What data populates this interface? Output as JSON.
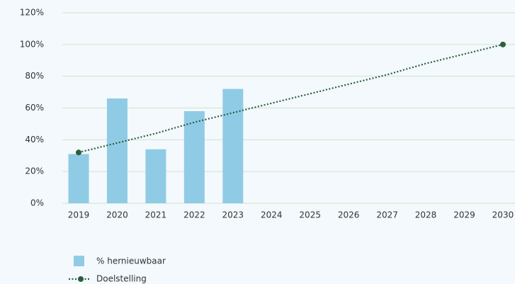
{
  "chart_data": {
    "type": "bar",
    "categories": [
      "2019",
      "2020",
      "2021",
      "2022",
      "2023",
      "2024",
      "2025",
      "2026",
      "2027",
      "2028",
      "2029",
      "2030"
    ],
    "series": [
      {
        "name": "% hernieuwbaar",
        "type": "bar",
        "color": "#90cbe6",
        "values": [
          31,
          66,
          34,
          58,
          72,
          null,
          null,
          null,
          null,
          null,
          null,
          null
        ]
      },
      {
        "name": "Doelstelling",
        "type": "line",
        "color": "#2b5e3c",
        "values": [
          32,
          38,
          44,
          51,
          57,
          63,
          69,
          75,
          81,
          88,
          94,
          100
        ]
      }
    ],
    "ylim": [
      0,
      120
    ],
    "yticks": [
      {
        "value": 0,
        "label": "0%"
      },
      {
        "value": 20,
        "label": "20%"
      },
      {
        "value": 40,
        "label": "40%"
      },
      {
        "value": 60,
        "label": "60%"
      },
      {
        "value": 80,
        "label": "80%"
      },
      {
        "value": 100,
        "label": "100%"
      },
      {
        "value": 120,
        "label": "120%"
      }
    ],
    "grid": true,
    "legend": "bottom-left"
  }
}
